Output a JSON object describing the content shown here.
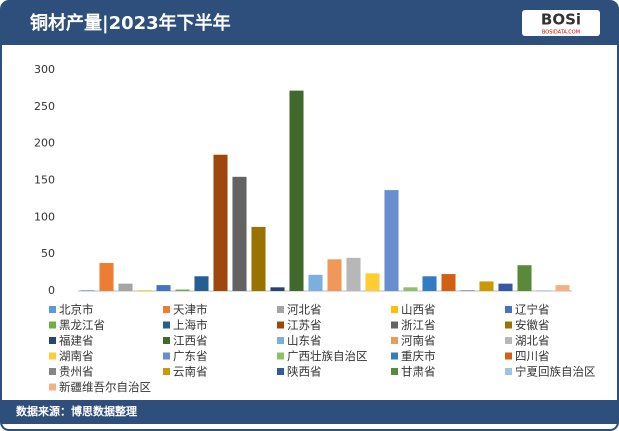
{
  "chart_data": {
    "type": "bar",
    "title": "铜材产量|2023年下半年",
    "source": "数据来源：博思数据整理",
    "logo": "BOSi",
    "logo_sub": "BOSIDATA.COM",
    "categories": [
      "北京市",
      "天津市",
      "河北省",
      "山西省",
      "辽宁省",
      "黑龙江省",
      "上海市",
      "江苏省",
      "浙江省",
      "安徽省",
      "福建省",
      "江西省",
      "山东省",
      "河南省",
      "湖北省",
      "湖南省",
      "广东省",
      "广西壮族自治区",
      "重庆市",
      "四川省",
      "贵州省",
      "云南省",
      "陕西省",
      "甘肃省",
      "宁夏回族自治区",
      "新疆维吾尔自治区"
    ],
    "values": [
      1,
      38,
      10,
      1,
      8,
      2,
      20,
      185,
      155,
      87,
      5,
      272,
      22,
      43,
      45,
      24,
      137,
      5,
      20,
      23,
      1,
      13,
      10,
      35,
      1,
      8
    ],
    "colors": [
      "#5b9bd5",
      "#ed7d31",
      "#a5a5a5",
      "#ffc000",
      "#4472c4",
      "#70ad47",
      "#255e91",
      "#9e480e",
      "#636363",
      "#997300",
      "#264478",
      "#43682b",
      "#7cafdd",
      "#f1975a",
      "#b7b7b7",
      "#ffcd33",
      "#698ed0",
      "#8cc168",
      "#327dc2",
      "#d26012",
      "#848484",
      "#cc9a00",
      "#335aa1",
      "#5a8a39",
      "#9dc3e6",
      "#f4b183"
    ],
    "ylim": [
      0,
      300
    ],
    "yticks": [
      0,
      50,
      100,
      150,
      200,
      250,
      300
    ],
    "grid": false,
    "legend": "bottom"
  }
}
